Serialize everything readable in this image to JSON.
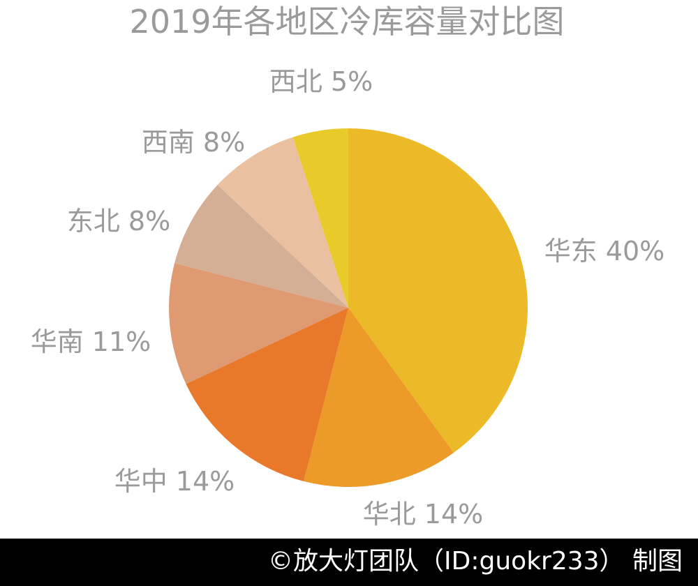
{
  "chart_data": {
    "type": "pie",
    "title": "2019年各地区冷库容量对比图",
    "categories": [
      "华东",
      "华北",
      "华中",
      "华南",
      "东北",
      "西南",
      "西北"
    ],
    "values": [
      40,
      14,
      14,
      11,
      8,
      8,
      5
    ],
    "unit": "%",
    "labels": [
      "华东 40%",
      "华北 14%",
      "华中 14%",
      "华南 11%",
      "东北 8%",
      "西南 8%",
      "西北 5%"
    ],
    "colors": [
      "#ECBA28",
      "#EC9A28",
      "#E8782A",
      "#DF9A72",
      "#D5AF95",
      "#EBC0A0",
      "#E8CA2A"
    ],
    "start_position": "12 o'clock",
    "direction": "clockwise"
  },
  "footer": {
    "credit": "©放大灯团队（ID:guokr233） 制图"
  }
}
